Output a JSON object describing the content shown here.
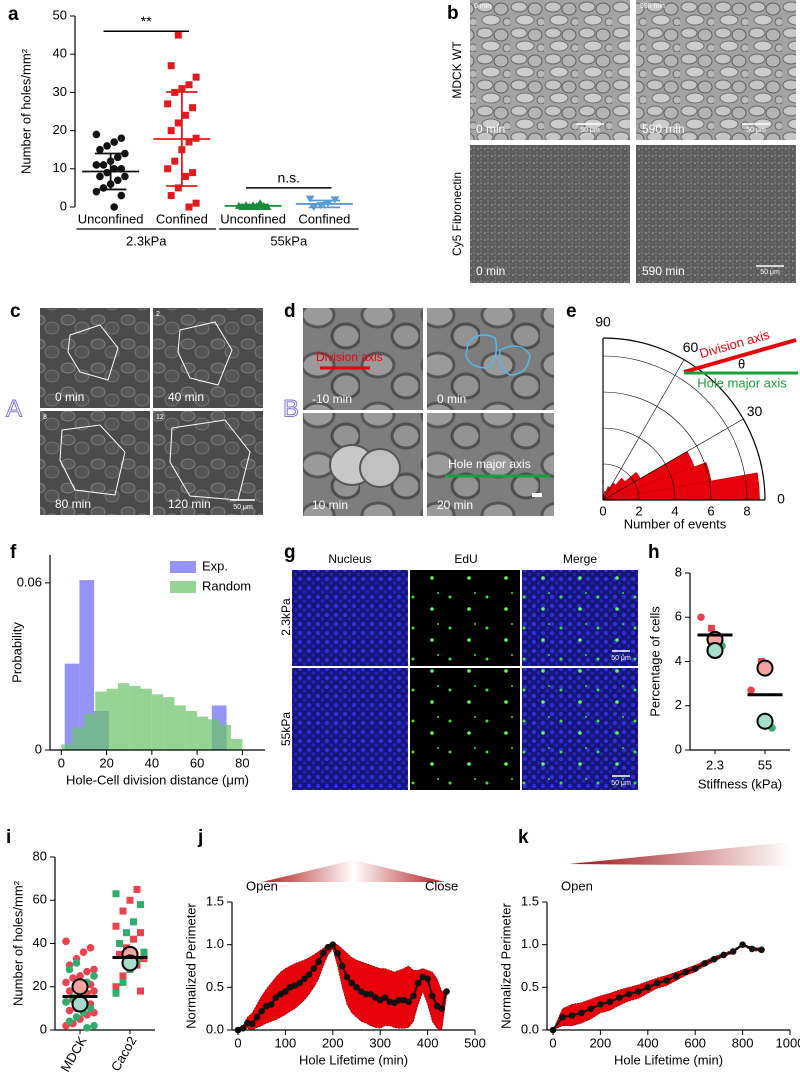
{
  "chart_data": [
    {
      "type": "dot",
      "panel": "a",
      "ylabel": "Number of holes/mm²",
      "ylim": [
        0,
        50
      ],
      "yticks": [
        0,
        10,
        20,
        30,
        40,
        50
      ],
      "categories": [
        "Unconfined",
        "Confined",
        "Unconfined",
        "Confined"
      ],
      "groups": [
        "2.3kPa",
        "55kPa"
      ],
      "series": [
        {
          "color": "#111111",
          "marker": "circle",
          "values": [
            [
              19,
              18,
              17,
              16,
              15,
              14,
              13,
              12,
              11,
              11,
              10,
              10,
              9,
              8,
              8,
              7,
              6,
              5,
              4,
              3,
              0
            ],
            [],
            [],
            []
          ]
        },
        {
          "color": "#e31a1c",
          "marker": "square",
          "values": [
            [],
            [
              45,
              37,
              34,
              32,
              31,
              30,
              27,
              26,
              24,
              22,
              20,
              18,
              17,
              15,
              12,
              10,
              9,
              8,
              5,
              3,
              1,
              0
            ],
            [],
            []
          ]
        },
        {
          "color": "#1a8a3a",
          "marker": "triangle",
          "values": [
            [],
            [],
            [
              1,
              0.5,
              0.5,
              0.3,
              0.3,
              0.2,
              0,
              0,
              0,
              0,
              0,
              0
            ],
            []
          ]
        },
        {
          "color": "#5b9bd5",
          "marker": "triangle-down",
          "values": [
            [],
            [],
            [],
            [
              2.2,
              2,
              1,
              0.5,
              0
            ]
          ]
        }
      ],
      "means": [
        9.3,
        17.8,
        0.3,
        0.8
      ],
      "sd": [
        4.7,
        12.3,
        0.3,
        0.9
      ],
      "annotations": [
        "**",
        "n.s."
      ]
    },
    {
      "type": "polar",
      "panel": "e",
      "xlabel": "Number of events",
      "rlim": [
        0,
        9
      ],
      "rticks": [
        0,
        2,
        4,
        6,
        8
      ],
      "angle_ticks": [
        0,
        30,
        60,
        90
      ],
      "bin_edges": [
        0,
        10,
        20,
        30,
        40,
        50,
        60,
        70,
        80,
        90
      ],
      "values": [
        8.7,
        6.1,
        5.4,
        2.4,
        1.6,
        1.1,
        0.8,
        0.5,
        0.3
      ],
      "color": "#e8000b",
      "annotations": [
        "Division axis",
        "θ",
        "Hole major axis"
      ]
    },
    {
      "type": "histogram",
      "panel": "f",
      "ylabel": "Probability",
      "xlabel": "Hole-Cell division distance (μm)",
      "xlim": [
        -5,
        90
      ],
      "xticks": [
        0,
        20,
        40,
        60,
        80
      ],
      "ylim": [
        0,
        0.07
      ],
      "yticks": [
        0,
        0.06
      ],
      "legend": "upper right",
      "series": [
        {
          "name": "Exp.",
          "color": "#6b6bf2",
          "bins": [
            1.5,
            8,
            14.5,
            21,
            27.5,
            34,
            40.5,
            47,
            53.5,
            60,
            66.5,
            73
          ],
          "values": [
            0.031,
            0.061,
            0.014,
            0,
            0,
            0,
            0,
            0,
            0,
            0,
            0.016
          ]
        },
        {
          "name": "Random",
          "color": "#6cc46c",
          "bins": [
            0,
            5,
            10,
            15,
            20,
            25,
            30,
            35,
            40,
            45,
            50,
            55,
            60,
            65,
            70,
            75,
            80
          ],
          "values": [
            0.002,
            0.008,
            0.013,
            0.021,
            0.022,
            0.024,
            0.023,
            0.022,
            0.02,
            0.019,
            0.016,
            0.014,
            0.012,
            0.011,
            0.009,
            0.004
          ]
        }
      ]
    },
    {
      "type": "dot",
      "panel": "h",
      "ylabel": "Percentage of cells",
      "xlabel": "Stiffness (kPa)",
      "ylim": [
        0,
        8
      ],
      "yticks": [
        0,
        2,
        4,
        6,
        8
      ],
      "categories": [
        "2.3",
        "55"
      ],
      "series": [
        {
          "color": "#e8434f",
          "marker": "circle",
          "values": [
            [
              6.0
            ],
            [
              2.7
            ]
          ]
        },
        {
          "color": "#e8434f",
          "marker": "square",
          "values": [
            [
              5.5
            ],
            [
              4.0
            ]
          ]
        },
        {
          "color": "#2eae6b",
          "marker": "circle",
          "values": [
            [
              4.7
            ],
            [
              1.0
            ]
          ]
        },
        {
          "color": "#f4a3a0",
          "marker": "big",
          "values": [
            [
              5.0
            ],
            [
              3.7
            ]
          ]
        },
        {
          "color": "#a6dccb",
          "marker": "big",
          "values": [
            [
              4.5
            ],
            [
              1.3
            ]
          ]
        }
      ],
      "means": [
        5.2,
        2.5
      ]
    },
    {
      "type": "dot",
      "panel": "i",
      "ylabel": "Number of holes/mm²",
      "ylim": [
        0,
        80
      ],
      "yticks": [
        0,
        20,
        40,
        60,
        80
      ],
      "rotate_labels": true,
      "categories": [
        "MDCK",
        "Caco2"
      ],
      "series": [
        {
          "color": "#e8434f",
          "marker": "circle",
          "values": [
            [
              41,
              38,
              36,
              33,
              30,
              28,
              27,
              25,
              24,
              22,
              21,
              20,
              19,
              18,
              18,
              17,
              15,
              14,
              13,
              12,
              11,
              10,
              9,
              8,
              7,
              5,
              3,
              2
            ],
            []
          ]
        },
        {
          "color": "#2eae6b",
          "marker": "circle",
          "values": [
            [
              31,
              28,
              25,
              22,
              18,
              15,
              13,
              10,
              8,
              6,
              4,
              2,
              1
            ],
            []
          ]
        },
        {
          "color": "#e8434f",
          "marker": "square",
          "values": [
            [],
            [
              65,
              60,
              55,
              48,
              45,
              42,
              38,
              35,
              33,
              30,
              28,
              25,
              20,
              18
            ]
          ]
        },
        {
          "color": "#2eae6b",
          "marker": "square",
          "values": [
            [],
            [
              63,
              58,
              50,
              45,
              40,
              36,
              32,
              28,
              22,
              17
            ]
          ]
        },
        {
          "color": "#f4a3a0",
          "marker": "big",
          "values": [
            [
              20
            ],
            [
              35
            ]
          ]
        },
        {
          "color": "#a6dccb",
          "marker": "big",
          "values": [
            [
              12
            ],
            [
              31
            ]
          ]
        }
      ],
      "means": [
        15.5,
        33.5
      ]
    },
    {
      "type": "line",
      "panel": "j",
      "header": "peak",
      "ylabel": "Normalized Perimeter",
      "xlabel": "Hole Lifetime (min)",
      "xlim": [
        0,
        500
      ],
      "xticks": [
        0,
        100,
        200,
        300,
        400,
        500
      ],
      "ylim": [
        0,
        1.5
      ],
      "yticks": [
        {
          "value": 0,
          "label": "0.0"
        },
        {
          "value": 0.5,
          "label": "0.5"
        },
        {
          "value": 1,
          "label": "1.0"
        },
        {
          "value": 1.5,
          "label": "1.5"
        }
      ],
      "annotations": [
        "Open",
        "Close"
      ],
      "series": [
        {
          "color": "#111111",
          "band_color": "#e8000b",
          "x": [
            0,
            10,
            20,
            30,
            40,
            50,
            60,
            70,
            80,
            90,
            100,
            110,
            120,
            130,
            140,
            150,
            160,
            170,
            180,
            190,
            200,
            210,
            220,
            230,
            240,
            250,
            260,
            270,
            280,
            290,
            300,
            310,
            320,
            330,
            340,
            350,
            360,
            370,
            380,
            390,
            400,
            410,
            420,
            430,
            440
          ],
          "values": [
            0.0,
            0.02,
            0.08,
            0.07,
            0.15,
            0.22,
            0.28,
            0.3,
            0.38,
            0.42,
            0.45,
            0.5,
            0.52,
            0.55,
            0.6,
            0.65,
            0.72,
            0.8,
            0.9,
            0.97,
            1.0,
            0.9,
            0.75,
            0.62,
            0.55,
            0.5,
            0.45,
            0.42,
            0.42,
            0.38,
            0.35,
            0.38,
            0.33,
            0.32,
            0.35,
            0.35,
            0.33,
            0.4,
            0.55,
            0.62,
            0.6,
            0.4,
            0.28,
            0.25,
            0.45
          ],
          "upper": [
            0.0,
            0.05,
            0.15,
            0.2,
            0.3,
            0.4,
            0.48,
            0.55,
            0.62,
            0.68,
            0.72,
            0.75,
            0.78,
            0.8,
            0.82,
            0.85,
            0.88,
            0.92,
            0.96,
            1.0,
            1.02,
            1.0,
            0.95,
            0.9,
            0.85,
            0.82,
            0.8,
            0.78,
            0.76,
            0.74,
            0.72,
            0.72,
            0.7,
            0.68,
            0.7,
            0.72,
            0.75,
            0.7,
            0.7,
            0.72,
            0.7,
            0.68,
            0.6,
            0.45,
            0.48
          ],
          "lower": [
            0.0,
            0.0,
            0.02,
            0.0,
            0.03,
            0.05,
            0.08,
            0.1,
            0.12,
            0.15,
            0.18,
            0.22,
            0.25,
            0.3,
            0.35,
            0.42,
            0.5,
            0.6,
            0.75,
            0.88,
            0.95,
            0.75,
            0.5,
            0.3,
            0.2,
            0.15,
            0.1,
            0.08,
            0.05,
            0.03,
            0.02,
            0.05,
            0.05,
            0.03,
            0.02,
            0.02,
            0.03,
            0.1,
            0.3,
            0.45,
            0.3,
            0.1,
            0.02,
            0.0,
            0.4
          ]
        }
      ]
    },
    {
      "type": "line",
      "panel": "k",
      "header": "rising",
      "ylabel": "Normalized Perimeter",
      "xlabel": "Hole Lifetime (min)",
      "xlim": [
        0,
        1000
      ],
      "xticks": [
        0,
        200,
        400,
        600,
        800,
        1000
      ],
      "ylim": [
        0,
        1.5
      ],
      "yticks": [
        {
          "value": 0,
          "label": "0.0"
        },
        {
          "value": 0.5,
          "label": "0.5"
        },
        {
          "value": 1,
          "label": "1.0"
        },
        {
          "value": 1.5,
          "label": "1.5"
        }
      ],
      "annotations": [
        "Open"
      ],
      "series": [
        {
          "color": "#111111",
          "band_color": "#e8000b",
          "x": [
            0,
            40,
            80,
            120,
            160,
            200,
            240,
            280,
            320,
            360,
            400,
            440,
            480,
            520,
            560,
            600,
            640,
            680,
            720,
            760,
            800,
            840,
            880
          ],
          "values": [
            0.0,
            0.15,
            0.17,
            0.2,
            0.25,
            0.3,
            0.33,
            0.38,
            0.42,
            0.45,
            0.5,
            0.55,
            0.58,
            0.63,
            0.68,
            0.72,
            0.78,
            0.83,
            0.88,
            0.92,
            1.0,
            0.95,
            0.94
          ],
          "upper": [
            0.0,
            0.25,
            0.3,
            0.32,
            0.36,
            0.4,
            0.43,
            0.47,
            0.5,
            0.53,
            0.57,
            0.61,
            0.64,
            0.68,
            0.72,
            0.76,
            0.81,
            0.86,
            0.9,
            0.94,
            1.01,
            0.97,
            0.96
          ],
          "lower": [
            0.0,
            0.05,
            0.05,
            0.08,
            0.13,
            0.2,
            0.23,
            0.29,
            0.34,
            0.37,
            0.43,
            0.49,
            0.52,
            0.58,
            0.64,
            0.68,
            0.75,
            0.8,
            0.86,
            0.9,
            0.99,
            0.93,
            0.92
          ]
        }
      ]
    }
  ],
  "figure_panels": {
    "b": {
      "letter": "b",
      "row_labels": [
        "MDCK WT",
        "Cy5 Fibronectin"
      ],
      "corner_times": [
        "0 min",
        "590 min"
      ],
      "times": [
        "0 min",
        "590 min",
        "0 min",
        "590 min"
      ],
      "scale_bars": [
        "50 μm",
        "50 μm",
        "50 μm"
      ]
    },
    "c": {
      "letter": "c",
      "mark": "A",
      "times": [
        "0 min",
        "40 min",
        "80 min",
        "120 min"
      ],
      "frame_numbers": [
        "2",
        "8",
        "12"
      ],
      "scale_bar": "50 μm"
    },
    "d": {
      "letter": "d",
      "mark": "B",
      "times": [
        "-10 min",
        "0 min",
        "10 min",
        "20 min"
      ],
      "division_axis": "Division axis",
      "hole_major_axis": "Hole major axis"
    },
    "g": {
      "letter": "g",
      "columns": [
        "Nucleus",
        "EdU",
        "Merge"
      ],
      "rows": [
        "2.3kPa",
        "55kPa"
      ],
      "scale_bars": [
        "50 μm",
        "50 μm"
      ]
    }
  }
}
